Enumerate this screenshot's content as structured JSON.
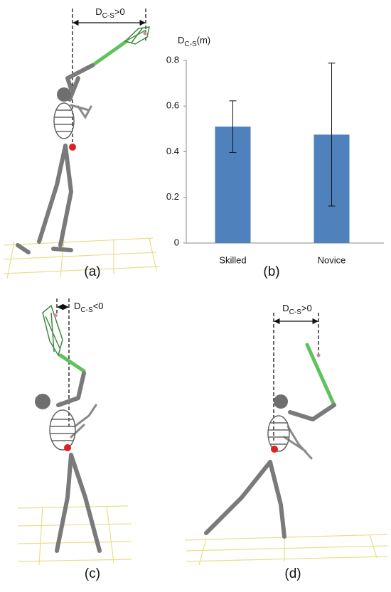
{
  "chart_data": {
    "type": "bar",
    "y_label": {
      "symbol": "D",
      "subscript": "C-S",
      "unit": "(m)"
    },
    "categories": [
      "Skilled",
      "Novice"
    ],
    "values": [
      0.51,
      0.475
    ],
    "errors": [
      0.113,
      0.313
    ],
    "color": "#4f81bd",
    "ylim": [
      0,
      0.8
    ],
    "yticks": [
      0,
      0.2,
      0.4,
      0.6,
      0.8
    ]
  },
  "panels": {
    "a": {
      "label": "(a)",
      "annotation": {
        "symbol": "D",
        "subscript": "C-S",
        "relation": ">0"
      }
    },
    "b": {
      "label": "(b)"
    },
    "c": {
      "label": "(c)",
      "annotation": {
        "symbol": "D",
        "subscript": "C-S",
        "relation": "<0"
      }
    },
    "d": {
      "label": "(d)",
      "annotation": {
        "symbol": "D",
        "subscript": "C-S",
        "relation": ">0"
      }
    }
  }
}
